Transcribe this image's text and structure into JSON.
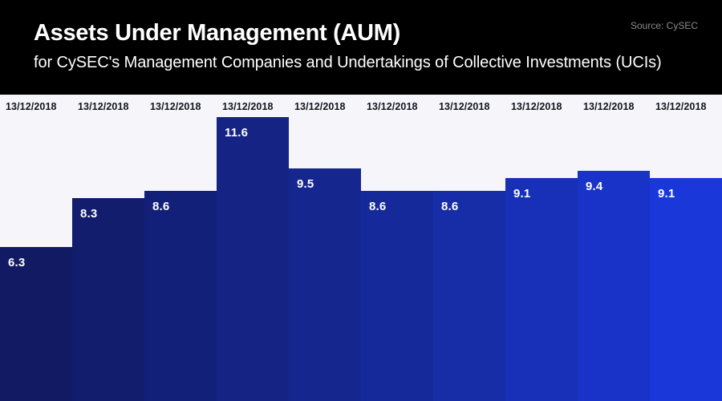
{
  "header": {
    "title": "Assets Under Management (AUM)",
    "subtitle": "for CySEC's Management Companies and Undertakings of Collective Investments (UCIs)",
    "source": "Source: CySEC"
  },
  "colors": {
    "header_background": "#000000",
    "title_text": "#ffffff",
    "source_text": "#8b8b8b",
    "chart_background": "#f5f5fa",
    "category_label": "#14141e",
    "value_label": "#ffffff"
  },
  "chart_data": {
    "type": "bar",
    "title": "Assets Under Management (AUM)",
    "subtitle": "for CySEC's Management Companies and Undertakings of Collective Investments (UCIs)",
    "source": "Source: CySEC",
    "categories": [
      "13/12/2018",
      "13/12/2018",
      "13/12/2018",
      "13/12/2018",
      "13/12/2018",
      "13/12/2018",
      "13/12/2018",
      "13/12/2018",
      "13/12/2018",
      "13/12/2018"
    ],
    "values": [
      6.3,
      8.3,
      8.6,
      11.6,
      9.5,
      8.6,
      8.6,
      9.1,
      9.4,
      9.1
    ],
    "bar_colors": [
      "#111a63",
      "#121d6e",
      "#132079",
      "#142384",
      "#15268f",
      "#16299b",
      "#172da8",
      "#1830b7",
      "#1933c8",
      "#1a37da"
    ],
    "xlabel": "",
    "ylabel": "",
    "ylim": [
      0,
      11.8
    ],
    "grid": false,
    "legend_position": "none",
    "value_labels_shown": true,
    "category_labels_position": "top"
  }
}
